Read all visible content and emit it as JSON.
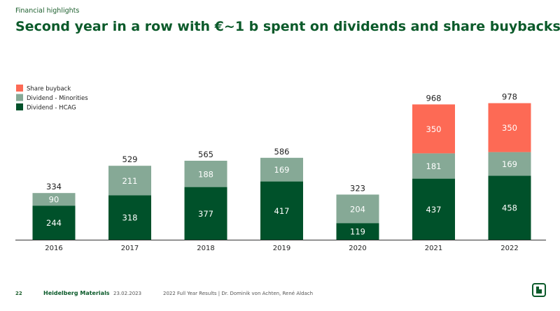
{
  "header": {
    "kicker": "Financial highlights",
    "title": "Second year in a row with €~1 b spent on dividends and share buybacks"
  },
  "footer": {
    "page_number": "22",
    "brand": "Heidelberg Materials",
    "date": "23.02.2023",
    "text": "2022 Full Year Results | Dr. Dominik von Achten, René Aldach"
  },
  "colors": {
    "hcag": "#00512a",
    "minorities": "#86a996",
    "buyback": "#fd6a55",
    "axis": "#333333",
    "text_dark": "#222222",
    "text_light": "#ffffff"
  },
  "chart_data": {
    "type": "bar",
    "stacked": true,
    "title": "",
    "xlabel": "",
    "ylabel": "",
    "categories": [
      "2016",
      "2017",
      "2018",
      "2019",
      "2020",
      "2021",
      "2022"
    ],
    "series": [
      {
        "name": "Dividend - HCAG",
        "color_key": "hcag",
        "label_color": "text_light",
        "values": [
          244,
          318,
          377,
          417,
          119,
          437,
          458
        ]
      },
      {
        "name": "Dividend - Minorities",
        "color_key": "minorities",
        "label_color": "text_light",
        "values": [
          90,
          211,
          188,
          169,
          204,
          181,
          169
        ]
      },
      {
        "name": "Share buyback",
        "color_key": "buyback",
        "label_color": "text_light",
        "values": [
          0,
          0,
          0,
          0,
          0,
          350,
          350
        ]
      }
    ],
    "totals": [
      "334",
      "529",
      "565",
      "586",
      "323",
      "968",
      "978"
    ],
    "legend_order": [
      "Share buyback",
      "Dividend - Minorities",
      "Dividend - HCAG"
    ],
    "legend_position": "top-left",
    "ylim": [
      0,
      1000
    ],
    "grid": false
  }
}
